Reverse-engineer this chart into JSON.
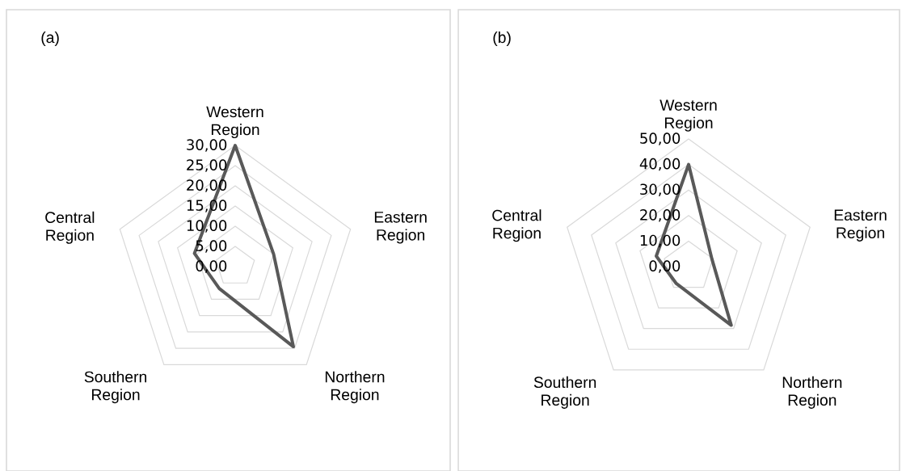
{
  "chart_data": [
    {
      "type": "radar",
      "title": "(a)",
      "categories": [
        "Western Region",
        "Eastern Region",
        "Northern Region",
        "Southern Region",
        "Central Region"
      ],
      "series": [
        {
          "color": "#595959",
          "values": [
            30,
            10,
            24.5,
            6.7,
            10.6
          ]
        }
      ],
      "ylim": [
        0,
        30
      ],
      "yticks": [
        {
          "value": 0,
          "label": "0,00"
        },
        {
          "value": 5,
          "label": "5,00"
        },
        {
          "value": 10,
          "label": "10,00"
        },
        {
          "value": 15,
          "label": "15,00"
        },
        {
          "value": 20,
          "label": "20,00"
        },
        {
          "value": 25,
          "label": "25,00"
        },
        {
          "value": 30,
          "label": "30,00"
        }
      ],
      "grid": true
    },
    {
      "type": "radar",
      "title": "(b)",
      "categories": [
        "Western Region",
        "Eastern Region",
        "Northern Region",
        "Southern Region",
        "Central Region"
      ],
      "series": [
        {
          "color": "#595959",
          "values": [
            40,
            9.6,
            28.4,
            8.2,
            13.3
          ]
        }
      ],
      "ylim": [
        0,
        50
      ],
      "yticks": [
        {
          "value": 0,
          "label": "0,00"
        },
        {
          "value": 10,
          "label": "10,00"
        },
        {
          "value": 20,
          "label": "20,00"
        },
        {
          "value": 30,
          "label": "30,00"
        },
        {
          "value": 40,
          "label": "40,00"
        },
        {
          "value": 50,
          "label": "50,00"
        }
      ],
      "grid": true
    }
  ]
}
